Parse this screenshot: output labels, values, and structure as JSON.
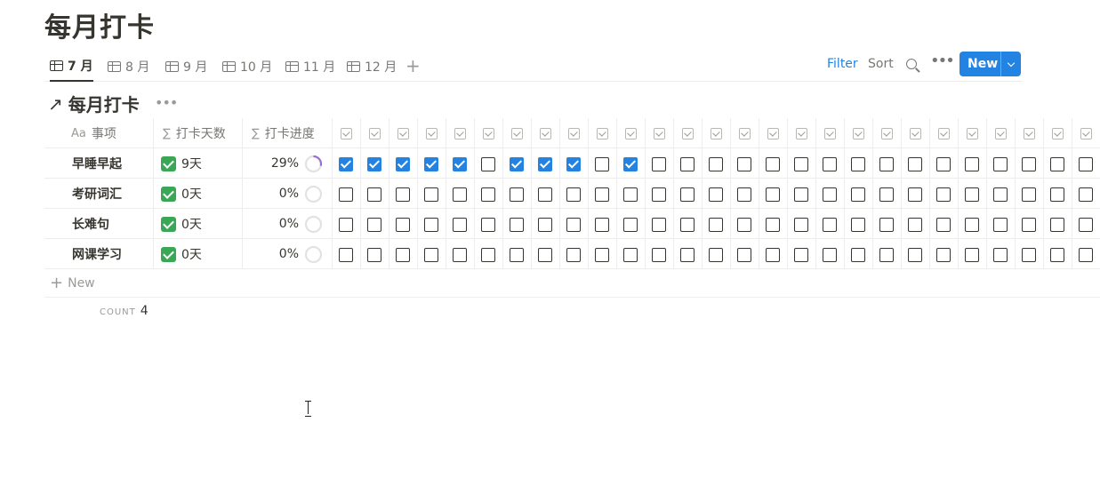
{
  "page": {
    "title": "每月打卡"
  },
  "tabs": [
    {
      "label": "7 月",
      "active": true
    },
    {
      "label": "8 月",
      "active": false
    },
    {
      "label": "9 月",
      "active": false
    },
    {
      "label": "10 月",
      "active": false
    },
    {
      "label": "11 月",
      "active": false
    },
    {
      "label": "12 月",
      "active": false
    }
  ],
  "toolbar": {
    "filter_label": "Filter",
    "sort_label": "Sort",
    "new_label": "New"
  },
  "database": {
    "title": "每月打卡"
  },
  "columns": {
    "name": {
      "label": "事项",
      "icon": "Aa"
    },
    "days": {
      "label": "打卡天数",
      "icon": "∑"
    },
    "progress": {
      "label": "打卡进度",
      "icon": "∑"
    },
    "checkbox_day_count": 27
  },
  "rows": [
    {
      "name": "早睡早起",
      "days": "9天",
      "progress_label": "29%",
      "progress": 0.29,
      "checks": [
        true,
        true,
        true,
        true,
        true,
        false,
        true,
        true,
        true,
        false,
        true,
        false,
        false,
        false,
        false,
        false,
        false,
        false,
        false,
        false,
        false,
        false,
        false,
        false,
        false,
        false,
        false
      ]
    },
    {
      "name": "考研词汇",
      "days": "0天",
      "progress_label": "0%",
      "progress": 0,
      "checks": [
        false,
        false,
        false,
        false,
        false,
        false,
        false,
        false,
        false,
        false,
        false,
        false,
        false,
        false,
        false,
        false,
        false,
        false,
        false,
        false,
        false,
        false,
        false,
        false,
        false,
        false,
        false
      ]
    },
    {
      "name": "长难句",
      "days": "0天",
      "progress_label": "0%",
      "progress": 0,
      "checks": [
        false,
        false,
        false,
        false,
        false,
        false,
        false,
        false,
        false,
        false,
        false,
        false,
        false,
        false,
        false,
        false,
        false,
        false,
        false,
        false,
        false,
        false,
        false,
        false,
        false,
        false,
        false
      ]
    },
    {
      "name": "网课学习",
      "days": "0天",
      "progress_label": "0%",
      "progress": 0,
      "checks": [
        false,
        false,
        false,
        false,
        false,
        false,
        false,
        false,
        false,
        false,
        false,
        false,
        false,
        false,
        false,
        false,
        false,
        false,
        false,
        false,
        false,
        false,
        false,
        false,
        false,
        false,
        false
      ]
    }
  ],
  "new_row_label": "New",
  "footer": {
    "count_label": "COUNT",
    "count_value": "4"
  },
  "colors": {
    "accent": "#2383e2",
    "progress_ring": "#9a6dd7",
    "text": "#37352f",
    "muted": "#9b9a97"
  }
}
